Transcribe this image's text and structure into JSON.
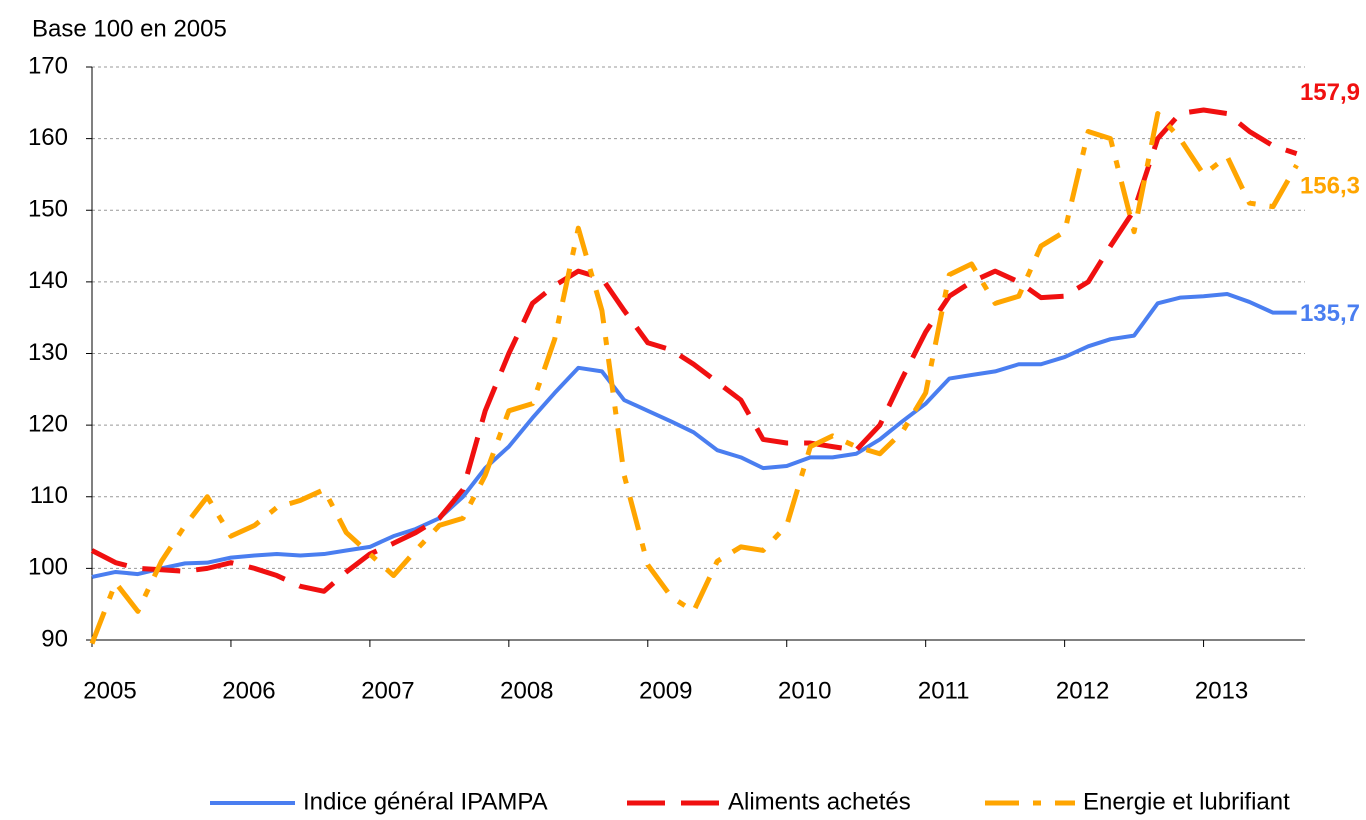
{
  "chart_data": {
    "type": "line",
    "ylabel": "Base 100 en 2005",
    "x": [
      2005,
      2005.17,
      2005.33,
      2005.5,
      2005.67,
      2005.83,
      2006,
      2006.17,
      2006.33,
      2006.5,
      2006.67,
      2006.83,
      2007,
      2007.17,
      2007.33,
      2007.5,
      2007.67,
      2007.83,
      2008,
      2008.17,
      2008.33,
      2008.5,
      2008.67,
      2008.83,
      2009,
      2009.17,
      2009.33,
      2009.5,
      2009.67,
      2009.83,
      2010,
      2010.17,
      2010.33,
      2010.5,
      2010.67,
      2010.83,
      2011,
      2011.17,
      2011.33,
      2011.5,
      2011.67,
      2011.83,
      2012,
      2012.17,
      2012.33,
      2012.5,
      2012.67,
      2012.83,
      2013,
      2013.17,
      2013.33,
      2013.5,
      2013.67
    ],
    "series": [
      {
        "name": "Indice général IPAMPA",
        "color": "#4a7ef0",
        "dash": "solid",
        "values": [
          98.8,
          99.5,
          99.2,
          100,
          100.7,
          100.8,
          101.5,
          101.8,
          102,
          101.8,
          102,
          102.5,
          103,
          104.5,
          105.5,
          107,
          110,
          114,
          117,
          121,
          124.5,
          128,
          127.5,
          123.5,
          122,
          120.5,
          119,
          116.5,
          115.5,
          114,
          114.3,
          115.5,
          115.5,
          116,
          118,
          120.5,
          123,
          126.5,
          127,
          127.5,
          128.5,
          128.5,
          129.5,
          131,
          132,
          132.5,
          137,
          137.8,
          138,
          138.3,
          137.2,
          135.7,
          135.7
        ],
        "value_labels": [
          null,
          null,
          null,
          null,
          null,
          null,
          null,
          null,
          null,
          null,
          null,
          null,
          null,
          null,
          null,
          null,
          null,
          null,
          null,
          null,
          null,
          null,
          null,
          null,
          null,
          null,
          null,
          null,
          null,
          null,
          null,
          null,
          null,
          null,
          null,
          null,
          null,
          null,
          null,
          null,
          null,
          null,
          null,
          null,
          null,
          null,
          null,
          null,
          null,
          null,
          null,
          null,
          "135,7"
        ]
      },
      {
        "name": "Aliments achetés",
        "color": "#f01010",
        "dash": "long",
        "values": [
          102.5,
          100.8,
          100,
          99.8,
          99.6,
          100,
          100.8,
          100,
          99,
          97.5,
          96.8,
          99.5,
          102,
          103.5,
          105,
          107,
          111,
          122,
          130,
          137,
          139.5,
          141.5,
          140.5,
          136,
          131.5,
          130.5,
          128.5,
          126,
          123.5,
          118,
          117.5,
          117.5,
          117,
          116.5,
          120,
          126.5,
          133,
          138,
          140,
          141.5,
          140,
          137.8,
          138,
          140,
          145,
          150,
          160,
          163.5,
          164,
          163.5,
          161,
          159,
          157.9
        ],
        "value_labels": [
          null,
          null,
          null,
          null,
          null,
          null,
          null,
          null,
          null,
          null,
          null,
          null,
          null,
          null,
          null,
          null,
          null,
          null,
          null,
          null,
          null,
          null,
          null,
          null,
          null,
          null,
          null,
          null,
          null,
          null,
          null,
          null,
          null,
          null,
          null,
          null,
          null,
          null,
          null,
          null,
          null,
          null,
          null,
          null,
          null,
          null,
          null,
          null,
          null,
          null,
          null,
          null,
          "157,9"
        ]
      },
      {
        "name": "Energie et lubrifiant",
        "color": "#ffa500",
        "dash": "mixed",
        "values": [
          89.5,
          98,
          94,
          101,
          106,
          110,
          104.5,
          106,
          108.5,
          109.5,
          111,
          105,
          102,
          99,
          102.5,
          106,
          107,
          113,
          122,
          123,
          132,
          147.5,
          136,
          113,
          100.5,
          96,
          94,
          101,
          103,
          102.5,
          106,
          117,
          118.5,
          117,
          116,
          119,
          124.5,
          141,
          142.5,
          137,
          138,
          145,
          147,
          161,
          160,
          147,
          163.5,
          160,
          155,
          157.5,
          151,
          150.5,
          156.3
        ],
        "value_labels": [
          null,
          null,
          null,
          null,
          null,
          null,
          null,
          null,
          null,
          null,
          null,
          null,
          null,
          null,
          null,
          null,
          null,
          null,
          null,
          null,
          null,
          null,
          null,
          null,
          null,
          null,
          null,
          null,
          null,
          null,
          null,
          null,
          null,
          null,
          null,
          null,
          null,
          null,
          null,
          null,
          null,
          null,
          null,
          null,
          null,
          null,
          null,
          null,
          null,
          null,
          null,
          null,
          "156,3"
        ]
      }
    ],
    "xlim": [
      2005,
      2013.73
    ],
    "xticks": [
      2005,
      2006,
      2007,
      2008,
      2009,
      2010,
      2011,
      2012,
      2013
    ],
    "ylim": [
      90,
      170
    ],
    "yticks": [
      90,
      100,
      110,
      120,
      130,
      140,
      150,
      160,
      170
    ],
    "grid": true,
    "legend": "bottom"
  }
}
